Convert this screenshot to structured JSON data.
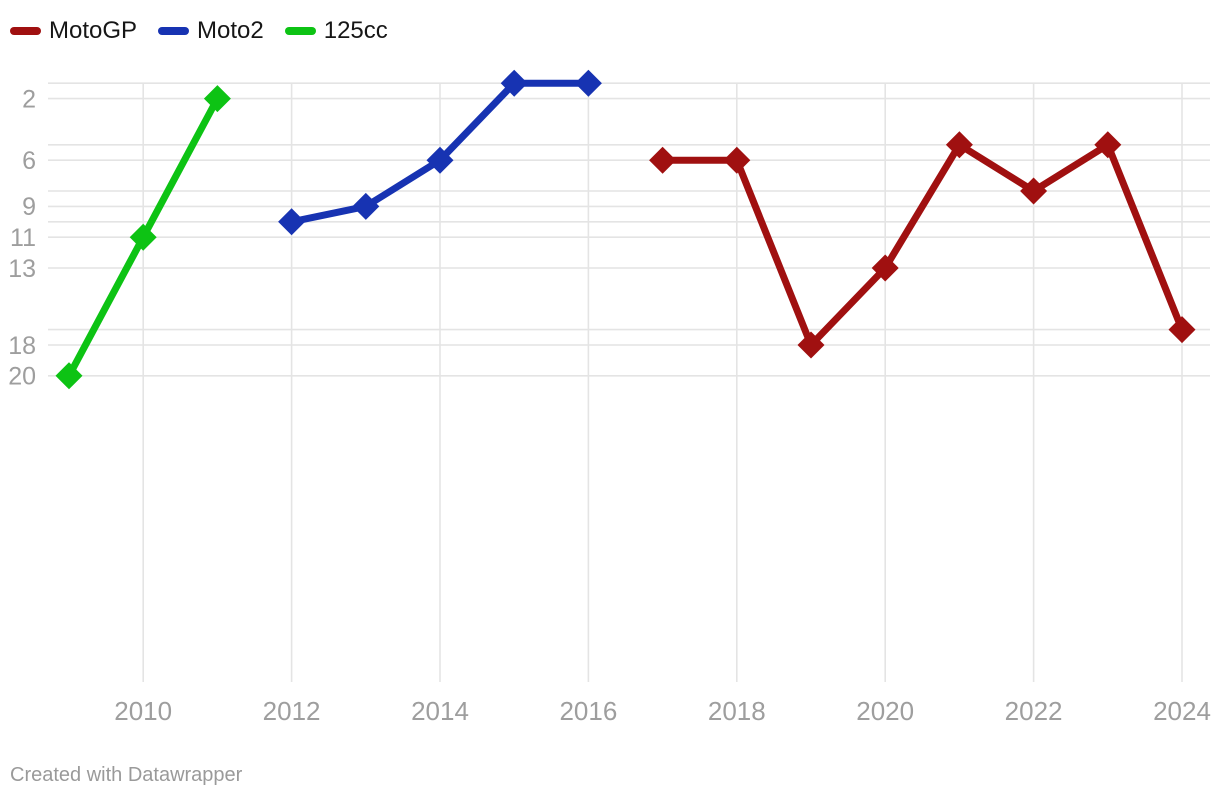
{
  "legend": {
    "items": [
      {
        "label": "MotoGP",
        "color": "#a01010"
      },
      {
        "label": "Moto2",
        "color": "#1733b2"
      },
      {
        "label": "125cc",
        "color": "#0dc314"
      }
    ]
  },
  "footer": {
    "text": "Created with Datawrapper"
  },
  "chart_data": {
    "type": "line",
    "title": "",
    "xlabel": "",
    "ylabel": "",
    "marker": "diamond",
    "grid": true,
    "legend_position": "top-left",
    "x_axis": {
      "range": [
        2009,
        2024
      ],
      "tick_labels": [
        2010,
        2012,
        2014,
        2016,
        2018,
        2020,
        2022,
        2024
      ]
    },
    "y_axis": {
      "inverted": true,
      "tick_labels": [
        2,
        6,
        9,
        11,
        13,
        18,
        20
      ],
      "gridline_values": [
        1,
        2,
        5,
        6,
        8,
        9,
        10,
        11,
        13,
        17,
        18,
        20
      ]
    },
    "series": [
      {
        "name": "125cc",
        "color": "#0dc314",
        "points": [
          {
            "x": 2009,
            "y": 20
          },
          {
            "x": 2010,
            "y": 11
          },
          {
            "x": 2011,
            "y": 2
          }
        ]
      },
      {
        "name": "Moto2",
        "color": "#1733b2",
        "points": [
          {
            "x": 2012,
            "y": 10
          },
          {
            "x": 2013,
            "y": 9
          },
          {
            "x": 2014,
            "y": 6
          },
          {
            "x": 2015,
            "y": 1
          },
          {
            "x": 2016,
            "y": 1
          }
        ]
      },
      {
        "name": "MotoGP",
        "color": "#a01010",
        "points": [
          {
            "x": 2017,
            "y": 6
          },
          {
            "x": 2018,
            "y": 6
          },
          {
            "x": 2019,
            "y": 18
          },
          {
            "x": 2020,
            "y": 13
          },
          {
            "x": 2021,
            "y": 5
          },
          {
            "x": 2022,
            "y": 8
          },
          {
            "x": 2023,
            "y": 5
          },
          {
            "x": 2024,
            "y": 17
          }
        ]
      }
    ],
    "colors": {
      "gridline": "#e4e4e4",
      "axis_text": "#9e9e9e",
      "legend_text": "#161616",
      "background": "#ffffff"
    }
  }
}
